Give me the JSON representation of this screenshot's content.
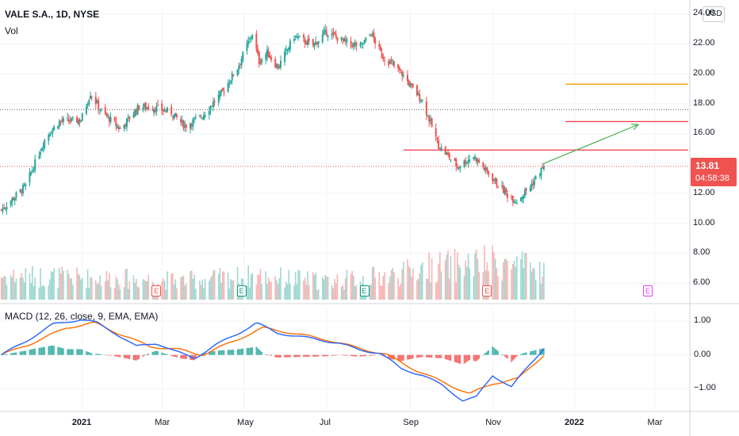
{
  "header": {
    "symbol_title": "VALE S.A., 1D, NYSE",
    "volume_label": "Vol",
    "macd_label": "MACD (12, 26, close, 9, EMA, EMA)",
    "currency_badge": "USD"
  },
  "price_tag": {
    "value": "13.81",
    "countdown": "04:58:38",
    "color": "#ef5350"
  },
  "colors": {
    "up": "#26a69a",
    "down": "#ef5350",
    "macd_line": "#2962ff",
    "signal_line": "#ff6d00",
    "orange_level": "#ff9800",
    "red_level": "#f23645",
    "arrow": "#4caf50",
    "earnings_past_red": "#ef5350",
    "earnings_past_green": "#089981",
    "earnings_future": "#e040fb"
  },
  "chart_data": [
    {
      "type": "candlestick",
      "title": "VALE S.A., 1D, NYSE",
      "ylim": [
        4.9,
        24.5
      ],
      "y_axis_ticks": [
        "24.00",
        "22.00",
        "20.00",
        "18.00",
        "16.00",
        "14.00",
        "12.00",
        "10.00",
        "8.00",
        "6.00"
      ],
      "y_axis_values": [
        24,
        22,
        20,
        18,
        16,
        14,
        12,
        10,
        8,
        6
      ],
      "x_axis_labels": [
        "2021",
        "Mar",
        "May",
        "Jul",
        "Sep",
        "Nov",
        "2022",
        "Mar"
      ],
      "x_axis_dates": [
        "2021-01-01",
        "2021-03-01",
        "2021-05-01",
        "2021-07-01",
        "2021-09-01",
        "2021-11-01",
        "2022-01-01",
        "2022-03-01"
      ],
      "date_range": [
        "2020-11-01",
        "2022-03-26"
      ],
      "close_anchors": [
        [
          "2020-11-02",
          10.9
        ],
        [
          "2020-11-20",
          12.5
        ],
        [
          "2020-12-05",
          15.8
        ],
        [
          "2020-12-15",
          16.8
        ],
        [
          "2020-12-31",
          16.9
        ],
        [
          "2021-01-07",
          18.7
        ],
        [
          "2021-01-15",
          17.5
        ],
        [
          "2021-01-29",
          16.3
        ],
        [
          "2021-02-12",
          17.8
        ],
        [
          "2021-02-25",
          17.7
        ],
        [
          "2021-03-08",
          17.4
        ],
        [
          "2021-03-18",
          16.5
        ],
        [
          "2021-03-31",
          17.2
        ],
        [
          "2021-04-15",
          18.8
        ],
        [
          "2021-04-26",
          20.4
        ],
        [
          "2021-05-07",
          22.7
        ],
        [
          "2021-05-12",
          20.8
        ],
        [
          "2021-05-18",
          21.4
        ],
        [
          "2021-05-26",
          20.4
        ],
        [
          "2021-06-07",
          22.5
        ],
        [
          "2021-06-21",
          21.9
        ],
        [
          "2021-07-01",
          22.8
        ],
        [
          "2021-07-15",
          22.1
        ],
        [
          "2021-07-26",
          21.8
        ],
        [
          "2021-08-03",
          22.7
        ],
        [
          "2021-08-11",
          21.2
        ],
        [
          "2021-08-25",
          20.1
        ],
        [
          "2021-09-02",
          19.1
        ],
        [
          "2021-09-10",
          18.2
        ],
        [
          "2021-09-22",
          15.2
        ],
        [
          "2021-10-06",
          13.8
        ],
        [
          "2021-10-18",
          14.5
        ],
        [
          "2021-10-29",
          13.3
        ],
        [
          "2021-11-12",
          11.9
        ],
        [
          "2021-11-19",
          11.5
        ],
        [
          "2021-11-30",
          12.6
        ],
        [
          "2021-12-09",
          13.81
        ]
      ],
      "last_close": 13.81,
      "volume": {
        "label": "Vol",
        "profile": [
          [
            "2020-11-02",
            0.35
          ],
          [
            "2021-01-15",
            0.32
          ],
          [
            "2021-03-15",
            0.28
          ],
          [
            "2021-05-10",
            0.35
          ],
          [
            "2021-07-01",
            0.27
          ],
          [
            "2021-08-20",
            0.36
          ],
          [
            "2021-09-15",
            0.48
          ],
          [
            "2021-10-15",
            0.52
          ],
          [
            "2021-11-05",
            0.55
          ],
          [
            "2021-12-09",
            0.42
          ]
        ]
      },
      "horizontal_levels": [
        {
          "value": 19.3,
          "from": "2021-12-25",
          "to": "2022-03-26",
          "color": "#ff9800"
        },
        {
          "value": 16.8,
          "from": "2021-12-25",
          "to": "2022-03-26",
          "color": "#f23645"
        },
        {
          "value": 14.9,
          "from": "2021-08-27",
          "to": "2022-03-26",
          "color": "#f23645"
        }
      ],
      "trend_arrow": {
        "from": [
          "2021-12-09",
          14.0
        ],
        "to": [
          "2022-02-17",
          16.6
        ],
        "color": "#4caf50"
      },
      "dotted_levels": [
        {
          "value": 17.6,
          "color": "#555555"
        },
        {
          "value": 13.81,
          "color": "#ef5350"
        }
      ],
      "earnings_markers": [
        {
          "date": "2021-02-25",
          "label": "E",
          "kind": "past-red"
        },
        {
          "date": "2021-04-29",
          "label": "E",
          "kind": "past-green"
        },
        {
          "date": "2021-07-29",
          "label": "E",
          "kind": "past-green"
        },
        {
          "date": "2021-10-28",
          "label": "E",
          "kind": "past-red"
        },
        {
          "date": "2022-02-24",
          "label": "E",
          "kind": "future"
        }
      ]
    },
    {
      "type": "line",
      "title": "MACD (12, 26, close, 9, EMA, EMA)",
      "ylim": [
        -1.6,
        1.4
      ],
      "y_axis_ticks": [
        "1.00",
        "0.00",
        "−1.00"
      ],
      "y_axis_values": [
        1,
        0,
        -1
      ],
      "series": [
        {
          "name": "MACD",
          "color": "#2962ff",
          "points": [
            [
              "2020-11-02",
              0.0
            ],
            [
              "2020-11-20",
              0.4
            ],
            [
              "2020-12-10",
              0.9
            ],
            [
              "2020-12-31",
              1.05
            ],
            [
              "2021-01-12",
              0.95
            ],
            [
              "2021-01-25",
              0.65
            ],
            [
              "2021-02-10",
              0.25
            ],
            [
              "2021-02-25",
              0.35
            ],
            [
              "2021-03-10",
              0.12
            ],
            [
              "2021-03-25",
              -0.1
            ],
            [
              "2021-04-10",
              0.3
            ],
            [
              "2021-04-25",
              0.6
            ],
            [
              "2021-05-10",
              0.95
            ],
            [
              "2021-05-25",
              0.65
            ],
            [
              "2021-06-10",
              0.55
            ],
            [
              "2021-06-25",
              0.45
            ],
            [
              "2021-07-10",
              0.35
            ],
            [
              "2021-07-25",
              0.15
            ],
            [
              "2021-08-10",
              0.05
            ],
            [
              "2021-08-25",
              -0.4
            ],
            [
              "2021-09-10",
              -0.6
            ],
            [
              "2021-09-25",
              -0.9
            ],
            [
              "2021-10-10",
              -1.35
            ],
            [
              "2021-10-20",
              -1.25
            ],
            [
              "2021-11-01",
              -0.6
            ],
            [
              "2021-11-15",
              -0.95
            ],
            [
              "2021-11-25",
              -0.45
            ],
            [
              "2021-12-09",
              0.2
            ]
          ]
        },
        {
          "name": "Signal",
          "color": "#ff6d00",
          "points": [
            [
              "2020-11-02",
              0.0
            ],
            [
              "2020-11-25",
              0.35
            ],
            [
              "2020-12-20",
              0.8
            ],
            [
              "2021-01-10",
              0.95
            ],
            [
              "2021-01-30",
              0.6
            ],
            [
              "2021-02-20",
              0.25
            ],
            [
              "2021-03-15",
              0.15
            ],
            [
              "2021-03-31",
              0.0
            ],
            [
              "2021-04-20",
              0.35
            ],
            [
              "2021-05-15",
              0.8
            ],
            [
              "2021-06-05",
              0.65
            ],
            [
              "2021-07-01",
              0.45
            ],
            [
              "2021-07-25",
              0.2
            ],
            [
              "2021-08-15",
              0.0
            ],
            [
              "2021-09-05",
              -0.45
            ],
            [
              "2021-09-25",
              -0.8
            ],
            [
              "2021-10-15",
              -1.15
            ],
            [
              "2021-11-01",
              -0.85
            ],
            [
              "2021-11-20",
              -0.7
            ],
            [
              "2021-12-09",
              0.0
            ]
          ]
        }
      ],
      "histogram_color_up": "#26a69a",
      "histogram_color_down": "#ef5350"
    }
  ]
}
